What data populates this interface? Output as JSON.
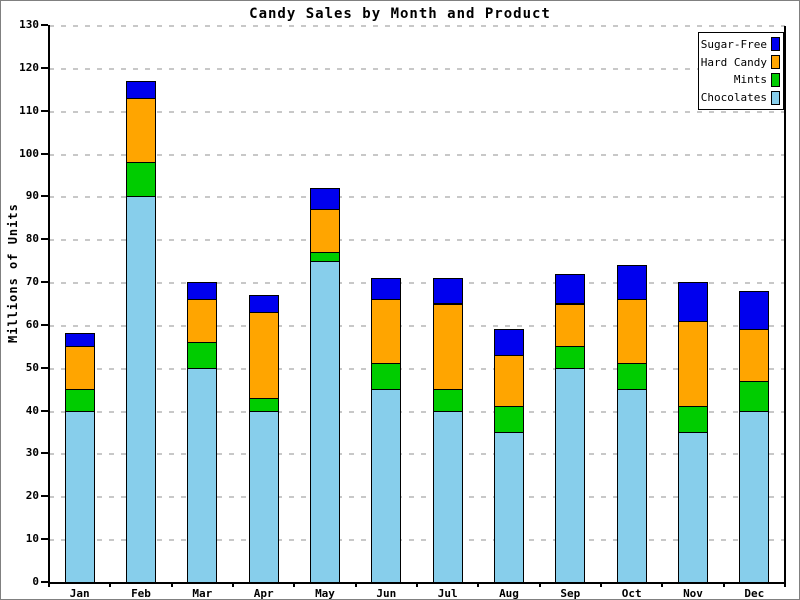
{
  "window": {
    "background_color": "#ffffff",
    "border_color": "#808080"
  },
  "chart_data": {
    "type": "bar",
    "stacked": true,
    "title": "Candy Sales by Month and Product",
    "xlabel": "",
    "ylabel": "Millions of Units",
    "categories": [
      "Jan",
      "Feb",
      "Mar",
      "Apr",
      "May",
      "Jun",
      "Jul",
      "Aug",
      "Sep",
      "Oct",
      "Nov",
      "Dec"
    ],
    "series": [
      {
        "name": "Chocolates",
        "color": "#87CEEB",
        "values": [
          40,
          90,
          50,
          40,
          75,
          45,
          40,
          35,
          50,
          45,
          35,
          40
        ]
      },
      {
        "name": "Mints",
        "color": "#00CC00",
        "values": [
          5,
          8,
          6,
          3,
          2,
          6,
          5,
          6,
          5,
          6,
          6,
          7
        ]
      },
      {
        "name": "Hard Candy",
        "color": "#FFA500",
        "values": [
          10,
          15,
          10,
          20,
          10,
          15,
          20,
          12,
          10,
          15,
          20,
          12
        ]
      },
      {
        "name": "Sugar-Free",
        "color": "#0000EE",
        "values": [
          3,
          4,
          4,
          4,
          5,
          5,
          6,
          6,
          7,
          8,
          9,
          9
        ]
      }
    ],
    "totals": [
      58,
      117,
      70,
      67,
      92,
      71,
      71,
      59,
      72,
      74,
      70,
      68
    ],
    "ylim": [
      0,
      130
    ],
    "yticks": [
      0,
      10,
      20,
      30,
      40,
      50,
      60,
      70,
      80,
      90,
      100,
      110,
      120,
      130
    ],
    "grid": "horizontal-dashed",
    "gridline_color": "#c8c8c8",
    "bar_outline_color": "#000000",
    "legend": {
      "position": "top-right",
      "entries_top_to_bottom": [
        "Sugar-Free",
        "Hard Candy",
        "Mints",
        "Chocolates"
      ]
    }
  }
}
